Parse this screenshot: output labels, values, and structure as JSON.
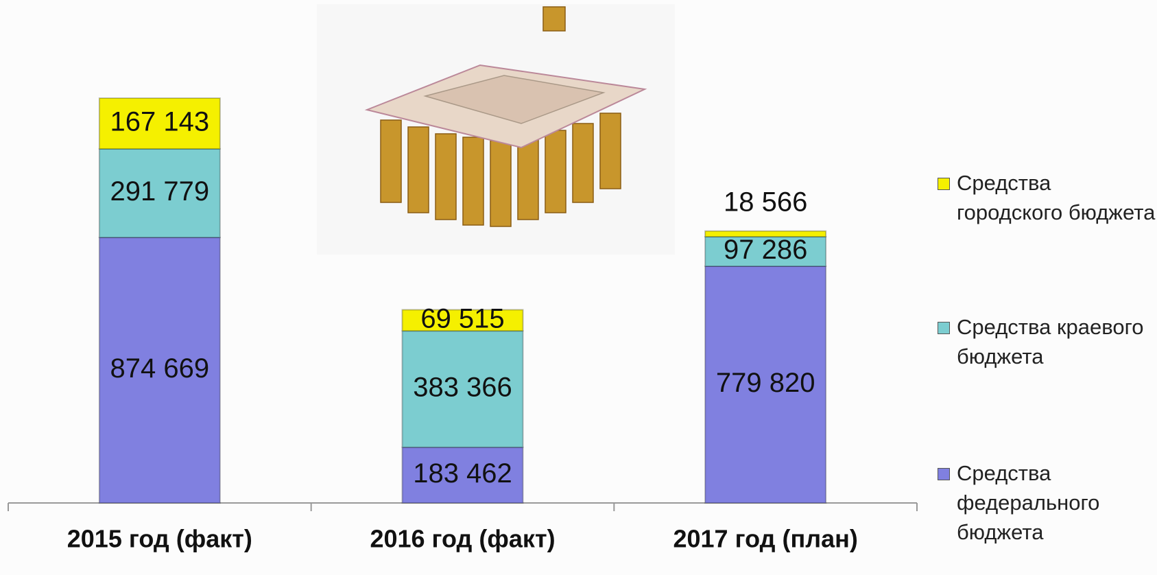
{
  "chart_data": {
    "type": "stacked_bar",
    "categories": [
      "2015 год (факт)",
      "2016 год (факт)",
      "2017 год (план)"
    ],
    "series": [
      {
        "name": "Средства федерального бюджета",
        "color": "#8080e0",
        "values": [
          874669,
          183462,
          779820
        ],
        "value_labels": [
          "874 669",
          "183 462",
          "779 820"
        ]
      },
      {
        "name": "Средства краевого бюджета",
        "color": "#7ccdd0",
        "values": [
          291779,
          383366,
          97286
        ],
        "value_labels": [
          "291 779",
          "383 366",
          "97 286"
        ]
      },
      {
        "name": "Средства городского бюджета",
        "color": "#f5f000",
        "values": [
          167143,
          69515,
          18566
        ],
        "value_labels": [
          "167 143",
          "69 515",
          "18 566"
        ]
      }
    ],
    "legend": "right"
  }
}
